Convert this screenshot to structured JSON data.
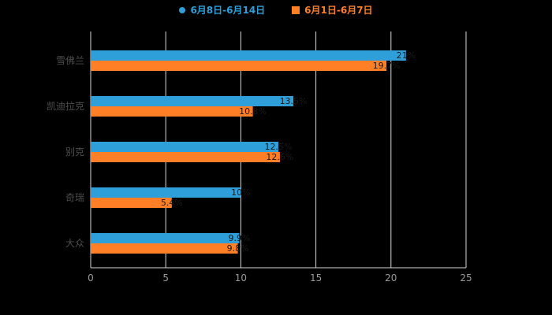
{
  "chart_data": {
    "type": "bar",
    "orientation": "horizontal",
    "title": "",
    "categories": [
      "雪佛兰",
      "凯迪拉克",
      "别克",
      "奇瑞",
      "大众"
    ],
    "series": [
      {
        "name": "6月8日-6月14日",
        "color": "#2E9FD9",
        "values": [
          21.0,
          13.5,
          12.5,
          10.0,
          9.9
        ]
      },
      {
        "name": "6月1日-6月7日",
        "color": "#FF7F27",
        "values": [
          19.7,
          10.8,
          12.6,
          5.4,
          9.8
        ]
      }
    ],
    "xlim": [
      0,
      25
    ],
    "xticks": [
      0,
      5,
      10,
      15,
      20,
      25
    ],
    "grid": true,
    "legend_position": "top",
    "value_label_suffix": "%"
  },
  "colors": {
    "background": "#000000",
    "axis_line": "#d9d9d9",
    "grid_line": "#d9d9d9",
    "tick_label": "#999999",
    "category_label": "#4d4d4d",
    "value_label": "#1a1a1a"
  }
}
